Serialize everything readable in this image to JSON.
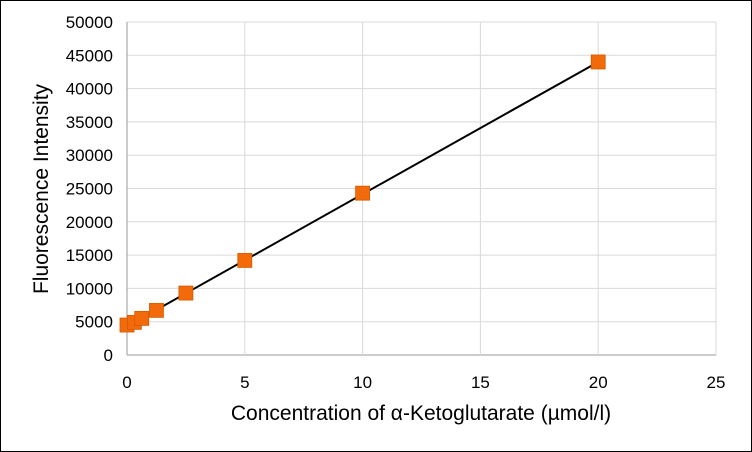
{
  "chart_data": {
    "type": "scatter",
    "title": "",
    "xlabel": "Concentration of α-Ketoglutarate (µmol/l)",
    "ylabel": "Fluorescence Intensity",
    "xlim": [
      0,
      25
    ],
    "ylim": [
      0,
      50000
    ],
    "x_ticks": [
      "0",
      "5",
      "10",
      "15",
      "20",
      "25"
    ],
    "y_ticks": [
      "0",
      "5000",
      "10000",
      "15000",
      "20000",
      "25000",
      "30000",
      "35000",
      "40000",
      "45000",
      "50000"
    ],
    "grid": true,
    "legend": "none",
    "series": [
      {
        "x": [
          0,
          0.3125,
          0.625,
          1.25,
          2.5,
          5,
          10,
          20
        ],
        "y": [
          4500,
          4900,
          5500,
          6700,
          9300,
          14200,
          24300,
          44000
        ],
        "marker": "square",
        "color": "#f26a0a"
      }
    ],
    "trendline": {
      "type": "linear",
      "x": [
        0,
        20
      ],
      "y": [
        4300,
        44000
      ],
      "color": "#000000"
    }
  }
}
